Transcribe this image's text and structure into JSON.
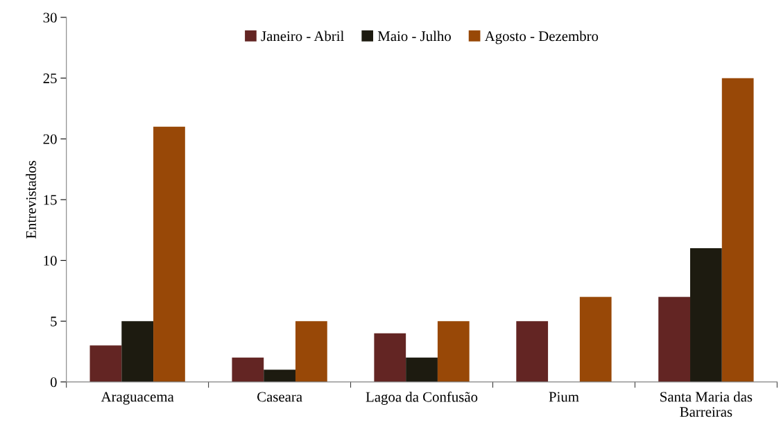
{
  "chart_data": {
    "type": "bar",
    "ylabel": "Entrevistados",
    "categories": [
      "Araguacema",
      "Caseara",
      "Lagoa da Confusão",
      "Pium",
      "Santa Maria das\nBarreiras"
    ],
    "series": [
      {
        "name": "Janeiro - Abril",
        "color": "#632523",
        "values": [
          3,
          2,
          4,
          5,
          7
        ]
      },
      {
        "name": "Maio - Julho",
        "color": "#1d1b10",
        "values": [
          5,
          1,
          2,
          0,
          11
        ]
      },
      {
        "name": "Agosto - Dezembro",
        "color": "#984807",
        "values": [
          21,
          5,
          5,
          7,
          25
        ]
      }
    ],
    "ylim": [
      0,
      30
    ],
    "yticks": [
      0,
      5,
      10,
      15,
      20,
      25,
      30
    ],
    "grid": false,
    "legend": "top"
  }
}
